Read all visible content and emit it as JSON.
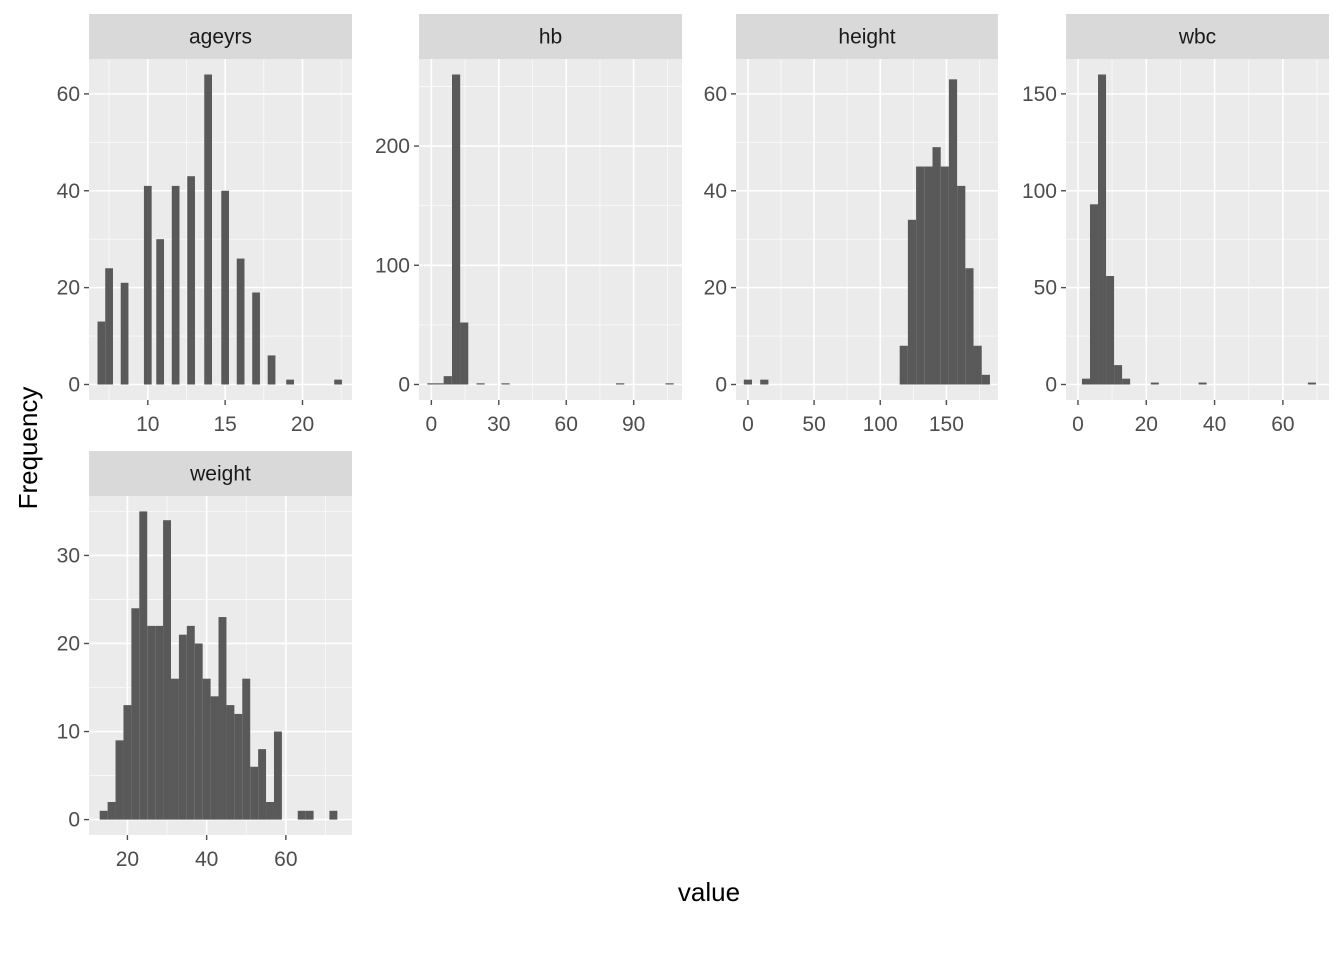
{
  "chart_data": {
    "type": "bar",
    "subtype": "faceted-histogram",
    "xlabel": "value",
    "ylabel": "Frequency",
    "grid": true,
    "colors": {
      "bar": "#595959",
      "panel": "#ebebeb",
      "strip": "#d9d9d9",
      "grid": "#ffffff",
      "tick": "#4d4d4d"
    },
    "facets": [
      {
        "name": "ageyrs",
        "xlim": [
          6.2,
          23.2
        ],
        "ylim": [
          -3.2,
          67.2
        ],
        "xticks": [
          10,
          15,
          20
        ],
        "yticks": [
          0,
          20,
          40,
          60
        ],
        "bin_width": 0.5,
        "bins": [
          {
            "x": 7.0,
            "count": 13
          },
          {
            "x": 7.5,
            "count": 24
          },
          {
            "x": 8.5,
            "count": 21
          },
          {
            "x": 10.0,
            "count": 41
          },
          {
            "x": 10.8,
            "count": 30
          },
          {
            "x": 11.8,
            "count": 41
          },
          {
            "x": 12.8,
            "count": 43
          },
          {
            "x": 13.9,
            "count": 64
          },
          {
            "x": 15.0,
            "count": 40
          },
          {
            "x": 16.0,
            "count": 26
          },
          {
            "x": 17.0,
            "count": 19
          },
          {
            "x": 18.0,
            "count": 6
          },
          {
            "x": 19.2,
            "count": 1
          },
          {
            "x": 22.3,
            "count": 1
          }
        ]
      },
      {
        "name": "hb",
        "xlim": [
          -5.5,
          111.5
        ],
        "ylim": [
          -13.0,
          273.0
        ],
        "xticks": [
          0,
          30,
          60,
          90
        ],
        "yticks": [
          0,
          100,
          200
        ],
        "bin_width": 3.65,
        "bins": [
          {
            "x": 0.0,
            "count": 1
          },
          {
            "x": 3.65,
            "count": 1
          },
          {
            "x": 7.3,
            "count": 7
          },
          {
            "x": 11.0,
            "count": 260
          },
          {
            "x": 14.6,
            "count": 52
          },
          {
            "x": 21.9,
            "count": 1
          },
          {
            "x": 33.0,
            "count": 1
          },
          {
            "x": 84.0,
            "count": 1
          },
          {
            "x": 106.0,
            "count": 1
          }
        ]
      },
      {
        "name": "height",
        "xlim": [
          -9.0,
          189.0
        ],
        "ylim": [
          -3.2,
          67.2
        ],
        "xticks": [
          0,
          50,
          100,
          150
        ],
        "yticks": [
          0,
          20,
          40,
          60
        ],
        "bin_width": 6.2,
        "bins": [
          {
            "x": 0.0,
            "count": 1
          },
          {
            "x": 12.4,
            "count": 1
          },
          {
            "x": 117.8,
            "count": 8
          },
          {
            "x": 124.0,
            "count": 34
          },
          {
            "x": 130.2,
            "count": 45
          },
          {
            "x": 136.4,
            "count": 45
          },
          {
            "x": 142.6,
            "count": 49
          },
          {
            "x": 148.8,
            "count": 45
          },
          {
            "x": 155.0,
            "count": 63
          },
          {
            "x": 161.2,
            "count": 41
          },
          {
            "x": 167.4,
            "count": 24
          },
          {
            "x": 173.6,
            "count": 8
          },
          {
            "x": 179.8,
            "count": 2
          }
        ]
      },
      {
        "name": "wbc",
        "xlim": [
          -3.5,
          73.5
        ],
        "ylim": [
          -8.0,
          168.0
        ],
        "xticks": [
          0,
          20,
          40,
          60
        ],
        "yticks": [
          0,
          50,
          100,
          150
        ],
        "bin_width": 2.35,
        "bins": [
          {
            "x": 2.35,
            "count": 3
          },
          {
            "x": 4.7,
            "count": 93
          },
          {
            "x": 7.05,
            "count": 160
          },
          {
            "x": 9.4,
            "count": 56
          },
          {
            "x": 11.75,
            "count": 10
          },
          {
            "x": 14.1,
            "count": 3
          },
          {
            "x": 22.5,
            "count": 1
          },
          {
            "x": 36.5,
            "count": 1
          },
          {
            "x": 68.5,
            "count": 1
          }
        ]
      },
      {
        "name": "weight",
        "xlim": [
          10.3,
          76.7
        ],
        "ylim": [
          -1.75,
          36.75
        ],
        "xticks": [
          20,
          40,
          60
        ],
        "yticks": [
          0,
          10,
          20,
          30
        ],
        "bin_width": 2.0,
        "bins": [
          {
            "x": 14,
            "count": 1
          },
          {
            "x": 16,
            "count": 2
          },
          {
            "x": 18,
            "count": 9
          },
          {
            "x": 20,
            "count": 13
          },
          {
            "x": 22,
            "count": 24
          },
          {
            "x": 24,
            "count": 35
          },
          {
            "x": 26,
            "count": 22
          },
          {
            "x": 28,
            "count": 22
          },
          {
            "x": 30,
            "count": 34
          },
          {
            "x": 32,
            "count": 16
          },
          {
            "x": 34,
            "count": 21
          },
          {
            "x": 36,
            "count": 22
          },
          {
            "x": 38,
            "count": 20
          },
          {
            "x": 40,
            "count": 16
          },
          {
            "x": 42,
            "count": 14
          },
          {
            "x": 44,
            "count": 23
          },
          {
            "x": 46,
            "count": 13
          },
          {
            "x": 48,
            "count": 12
          },
          {
            "x": 50,
            "count": 16
          },
          {
            "x": 52,
            "count": 6
          },
          {
            "x": 54,
            "count": 8
          },
          {
            "x": 56,
            "count": 2
          },
          {
            "x": 58,
            "count": 10
          },
          {
            "x": 64,
            "count": 1
          },
          {
            "x": 66,
            "count": 1
          },
          {
            "x": 72,
            "count": 1
          }
        ]
      }
    ]
  }
}
